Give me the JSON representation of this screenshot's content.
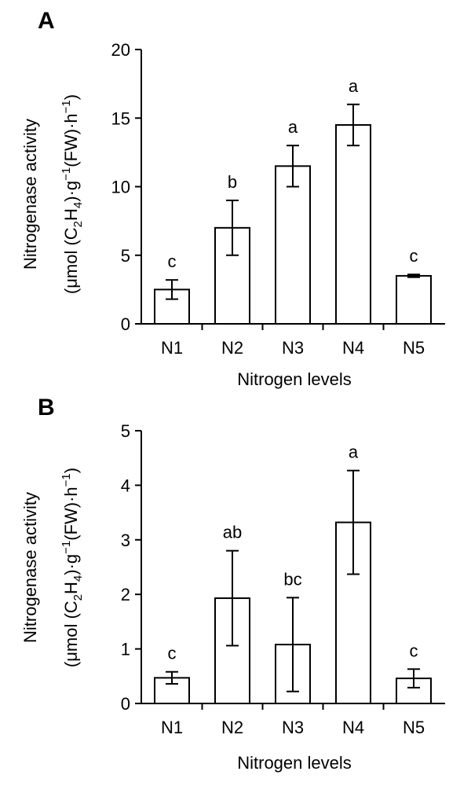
{
  "chart_data": [
    {
      "panel_label": "A",
      "type": "bar",
      "categories": [
        "N1",
        "N2",
        "N3",
        "N4",
        "N5"
      ],
      "values": [
        2.5,
        7.0,
        11.5,
        14.5,
        3.5
      ],
      "errors": [
        0.7,
        2.0,
        1.5,
        1.5,
        0.1
      ],
      "significance": [
        "c",
        "b",
        "a",
        "a",
        "c"
      ],
      "xlabel": "Nitrogen levels",
      "ylabel_line1": "Nitrogenase activity",
      "ylabel_line2": {
        "pre": "(μmol (C",
        "sub1": "2",
        "mid1": "H",
        "sub2": "4",
        "mid2": ")·g",
        "sup1": "−1",
        "mid3": "(FW)·h",
        "sup2": "−1",
        "post": ")"
      },
      "ylim": [
        0,
        20
      ],
      "yticks": [
        0,
        5,
        10,
        15,
        20
      ],
      "ytick_labels": [
        "0",
        "5",
        "10",
        "15",
        "20"
      ]
    },
    {
      "panel_label": "B",
      "type": "bar",
      "categories": [
        "N1",
        "N2",
        "N3",
        "N4",
        "N5"
      ],
      "values": [
        0.47,
        1.93,
        1.08,
        3.32,
        0.46
      ],
      "errors": [
        0.11,
        0.87,
        0.86,
        0.95,
        0.17
      ],
      "significance": [
        "c",
        "ab",
        "bc",
        "a",
        "c"
      ],
      "xlabel": "Nitrogen levels",
      "ylabel_line1": "Nitrogenase activity",
      "ylabel_line2": {
        "pre": "(μmol (C",
        "sub1": "2",
        "mid1": "H",
        "sub2": "4",
        "mid2": ")·g",
        "sup1": "−1",
        "mid3": "(FW)·h",
        "sup2": "−1",
        "post": ")"
      },
      "ylim": [
        0,
        5
      ],
      "yticks": [
        0,
        1,
        2,
        3,
        4,
        5
      ],
      "ytick_labels": [
        "0",
        "1",
        "2",
        "3",
        "4",
        "5"
      ]
    }
  ]
}
